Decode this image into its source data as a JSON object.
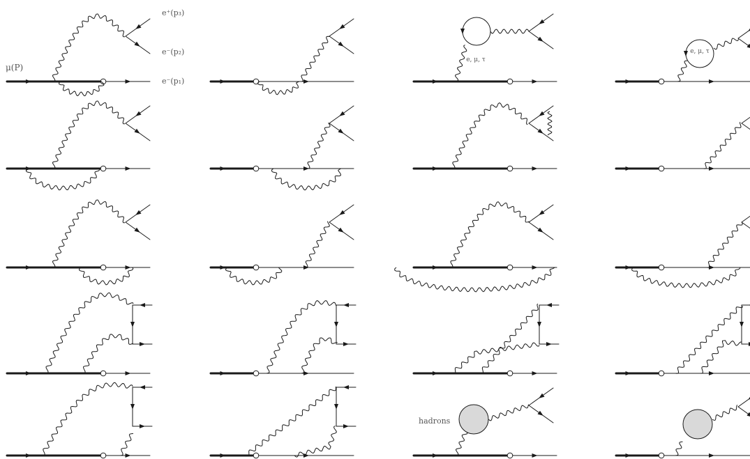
{
  "labels": {
    "muon_in": "μ(P)",
    "positron_out": "e⁺(p₃)",
    "electron_out_p2": "e⁻(p₂)",
    "electron_out_p1": "e⁻(p₁)",
    "lepton_loop": "e, μ, τ",
    "hadrons": "hadrons"
  },
  "colors": {
    "line": "#1a1a1a",
    "blob_fill": "#d9d9d9",
    "label": "#555555"
  }
}
